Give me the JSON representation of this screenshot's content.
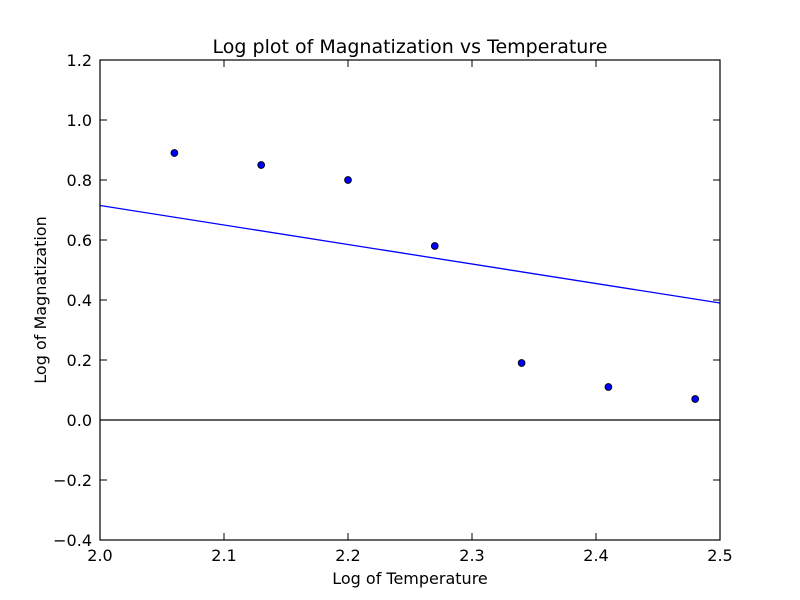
{
  "chart_data": {
    "type": "scatter",
    "title": "Log plot of Magnatization vs Temperature",
    "xlabel": "Log of Temperature",
    "ylabel": "Log of Magnatization",
    "xlim": [
      2.0,
      2.5
    ],
    "ylim": [
      -0.4,
      1.2
    ],
    "x_ticks": [
      "2.0",
      "2.1",
      "2.2",
      "2.3",
      "2.4",
      "2.5"
    ],
    "y_ticks": [
      "−0.4",
      "−0.2",
      "0.0",
      "0.2",
      "0.4",
      "0.6",
      "0.8",
      "1.0",
      "1.2"
    ],
    "grid": false,
    "points": {
      "x": [
        2.06,
        2.13,
        2.2,
        2.27,
        2.34,
        2.41,
        2.48
      ],
      "y": [
        0.89,
        0.85,
        0.8,
        0.58,
        0.19,
        0.11,
        0.07
      ],
      "color": "#0000ff"
    },
    "fit_line": {
      "x": [
        2.0,
        2.5
      ],
      "y": [
        0.715,
        0.39
      ],
      "color": "#0000ff"
    },
    "reference_line": {
      "y": 0.0,
      "color": "#000000"
    }
  }
}
